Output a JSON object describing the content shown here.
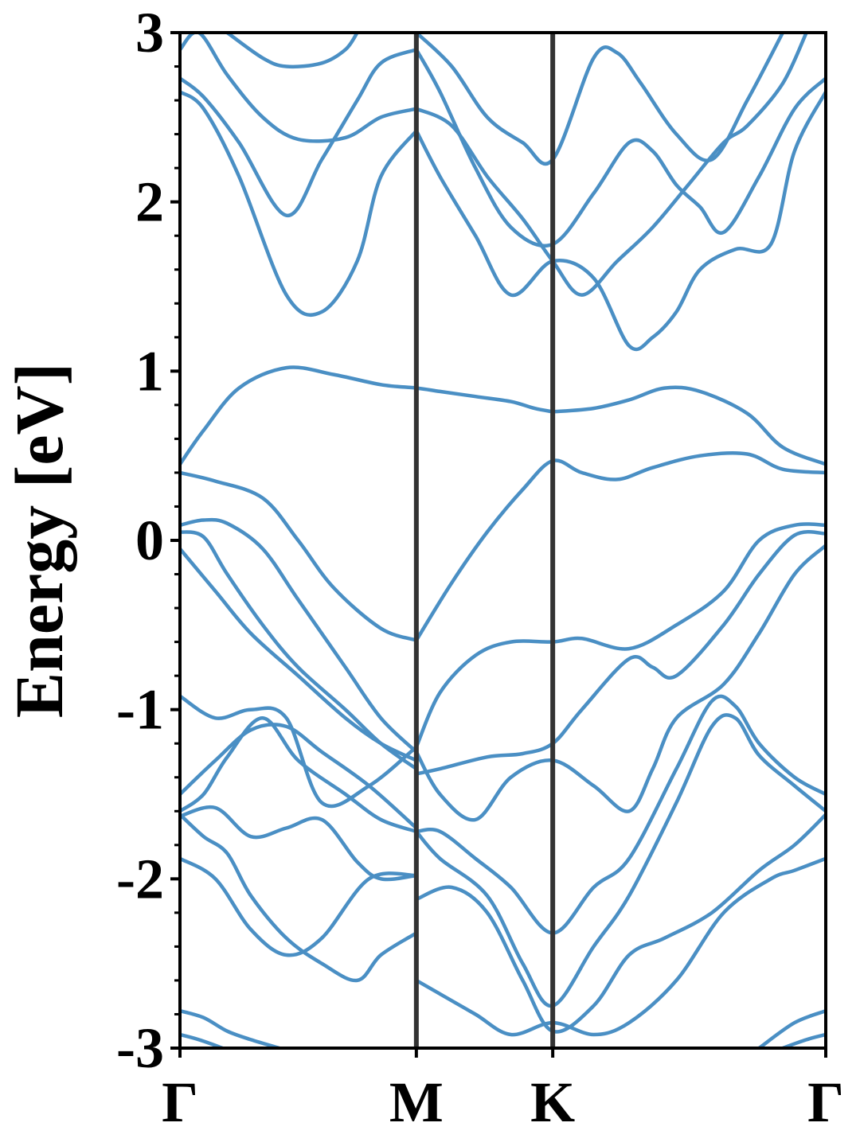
{
  "chart_data": {
    "type": "line",
    "title": "",
    "xlabel": "",
    "ylabel": "Energy [eV]",
    "ylim": [
      -3,
      3
    ],
    "grid": false,
    "legend": "none",
    "colors": {
      "band": "#4a8fc4",
      "kpath_line": "#333333"
    },
    "x_range": [
      0,
      2.732
    ],
    "high_symmetry_points": [
      {
        "label": "Γ",
        "x": 0
      },
      {
        "label": "M",
        "x": 1.0
      },
      {
        "label": "K",
        "x": 1.577
      },
      {
        "label": "Γ",
        "x": 2.732
      }
    ],
    "yticks": [
      {
        "value": 3,
        "label": "3"
      },
      {
        "value": 2,
        "label": "2"
      },
      {
        "value": 1,
        "label": "1"
      },
      {
        "value": 0,
        "label": "0"
      },
      {
        "value": -1,
        "label": "-1"
      },
      {
        "value": -2,
        "label": "-2"
      },
      {
        "value": -3,
        "label": "-3"
      }
    ],
    "minor_tick_step": 0.2,
    "series": [
      {
        "x": [
          0,
          0.1,
          0.25,
          0.45,
          0.65,
          0.85,
          1.0,
          1.1,
          1.25,
          1.4,
          1.5,
          1.577
        ],
        "y": [
          0.45,
          0.65,
          0.9,
          1.02,
          0.98,
          0.92,
          0.9,
          0.88,
          0.85,
          0.82,
          0.78,
          0.76
        ]
      },
      {
        "x": [
          1.577,
          1.75,
          1.9,
          2.05,
          2.2,
          2.4,
          2.55,
          2.732
        ],
        "y": [
          0.76,
          0.78,
          0.83,
          0.9,
          0.88,
          0.75,
          0.55,
          0.45
        ]
      },
      {
        "x": [
          0,
          0.15,
          0.35,
          0.5,
          0.65,
          0.85,
          1.0
        ],
        "y": [
          0.4,
          0.35,
          0.25,
          0.0,
          -0.28,
          -0.52,
          -0.59
        ]
      },
      {
        "x": [
          1.0,
          1.15,
          1.3,
          1.45,
          1.577,
          1.7,
          1.85,
          2.0,
          2.2,
          2.4,
          2.55,
          2.732
        ],
        "y": [
          -0.59,
          -0.25,
          0.05,
          0.3,
          0.47,
          0.4,
          0.36,
          0.43,
          0.5,
          0.51,
          0.42,
          0.4
        ]
      },
      {
        "x": [
          0,
          0.1,
          0.2,
          0.35,
          0.5,
          0.7,
          0.85,
          1.0
        ],
        "y": [
          0.09,
          0.12,
          0.1,
          -0.05,
          -0.35,
          -0.75,
          -1.05,
          -1.25
        ]
      },
      {
        "x": [
          0,
          0.1,
          0.2,
          0.35,
          0.5,
          0.7,
          0.85,
          1.0
        ],
        "y": [
          0.05,
          0.02,
          -0.2,
          -0.5,
          -0.75,
          -1.0,
          -1.2,
          -1.35
        ]
      },
      {
        "x": [
          0,
          0.15,
          0.3,
          0.5,
          0.7,
          0.85,
          1.0
        ],
        "y": [
          -0.05,
          -0.3,
          -0.55,
          -0.8,
          -1.05,
          -1.2,
          -1.3
        ]
      },
      {
        "x": [
          1.0,
          1.1,
          1.25,
          1.4,
          1.577,
          1.7,
          1.9,
          2.1,
          2.3,
          2.45,
          2.6,
          2.732
        ],
        "y": [
          -1.22,
          -0.9,
          -0.68,
          -0.6,
          -0.6,
          -0.58,
          -0.64,
          -0.5,
          -0.3,
          0.0,
          0.09,
          0.09
        ]
      },
      {
        "x": [
          1.0,
          1.1,
          1.3,
          1.45,
          1.577,
          1.7,
          1.9,
          2.0,
          2.1,
          2.3,
          2.45,
          2.6,
          2.732
        ],
        "y": [
          -1.38,
          -1.35,
          -1.28,
          -1.26,
          -1.2,
          -1.0,
          -0.7,
          -0.75,
          -0.8,
          -0.5,
          -0.2,
          0.03,
          0.04
        ]
      },
      {
        "x": [
          1.0,
          1.1,
          1.25,
          1.4,
          1.577,
          1.75,
          1.9,
          2.0,
          2.1,
          2.3,
          2.45,
          2.6,
          2.732
        ],
        "y": [
          -1.25,
          -1.5,
          -1.65,
          -1.4,
          -1.3,
          -1.45,
          -1.6,
          -1.35,
          -1.05,
          -0.85,
          -0.55,
          -0.2,
          -0.03
        ]
      },
      {
        "x": [
          0,
          0.15,
          0.3,
          0.45,
          0.6,
          0.8,
          1.0
        ],
        "y": [
          -0.92,
          -1.05,
          -1.0,
          -1.05,
          -1.55,
          -1.45,
          -1.22
        ]
      },
      {
        "x": [
          0,
          0.15,
          0.3,
          0.45,
          0.6,
          0.8,
          1.0
        ],
        "y": [
          -1.5,
          -1.3,
          -1.12,
          -1.1,
          -1.25,
          -1.45,
          -1.7
        ]
      },
      {
        "x": [
          0,
          0.1,
          0.2,
          0.35,
          0.5,
          0.7,
          0.85,
          1.0
        ],
        "y": [
          -1.6,
          -1.5,
          -1.28,
          -1.05,
          -1.3,
          -1.5,
          -1.65,
          -1.72
        ]
      },
      {
        "x": [
          0,
          0.15,
          0.3,
          0.45,
          0.6,
          0.75,
          0.85,
          1.0
        ],
        "y": [
          -1.63,
          -1.58,
          -1.75,
          -1.7,
          -1.65,
          -1.9,
          -2.0,
          -1.98
        ]
      },
      {
        "x": [
          1.0,
          1.1,
          1.25,
          1.4,
          1.577,
          1.75,
          1.9,
          2.1,
          2.25,
          2.35,
          2.45,
          2.6,
          2.732
        ],
        "y": [
          -1.72,
          -1.72,
          -1.88,
          -2.05,
          -2.32,
          -2.05,
          -1.88,
          -1.35,
          -0.95,
          -0.98,
          -1.2,
          -1.4,
          -1.5
        ]
      },
      {
        "x": [
          1.0,
          1.1,
          1.3,
          1.45,
          1.577,
          1.75,
          1.9,
          2.1,
          2.25,
          2.35,
          2.45,
          2.6,
          2.732
        ],
        "y": [
          -1.72,
          -1.88,
          -2.1,
          -2.5,
          -2.75,
          -2.4,
          -2.1,
          -1.55,
          -1.1,
          -1.05,
          -1.27,
          -1.45,
          -1.6
        ]
      },
      {
        "x": [
          0,
          0.15,
          0.3,
          0.45,
          0.6,
          0.8,
          1.0
        ],
        "y": [
          -1.88,
          -2.0,
          -2.3,
          -2.45,
          -2.35,
          -2.0,
          -1.98
        ]
      },
      {
        "x": [
          0,
          0.1,
          0.2,
          0.3,
          0.45,
          0.6,
          0.75,
          0.85,
          1.0
        ],
        "y": [
          -1.62,
          -1.75,
          -1.85,
          -2.1,
          -2.35,
          -2.5,
          -2.6,
          -2.45,
          -2.32
        ]
      },
      {
        "x": [
          1.0,
          1.15,
          1.3,
          1.45,
          1.577,
          1.75,
          1.9,
          2.05,
          2.25,
          2.45,
          2.6,
          2.732
        ],
        "y": [
          -2.12,
          -2.05,
          -2.2,
          -2.6,
          -2.9,
          -2.75,
          -2.45,
          -2.35,
          -2.2,
          -1.95,
          -1.8,
          -1.62
        ]
      },
      {
        "x": [
          1.0,
          1.1,
          1.25,
          1.4,
          1.577,
          1.75,
          1.9,
          2.1,
          2.3,
          2.5,
          2.6,
          2.732
        ],
        "y": [
          -2.6,
          -2.68,
          -2.8,
          -2.92,
          -2.85,
          -2.92,
          -2.85,
          -2.6,
          -2.2,
          -2.0,
          -1.95,
          -1.88
        ]
      },
      {
        "x": [
          0,
          0.1,
          0.2,
          0.3,
          0.42
        ],
        "y": [
          -2.78,
          -2.82,
          -2.9,
          -2.95,
          -3.0
        ]
      },
      {
        "x": [
          0,
          0.08,
          0.18
        ],
        "y": [
          -2.92,
          -2.95,
          -3.0
        ]
      },
      {
        "x": [
          2.55,
          2.65,
          2.732
        ],
        "y": [
          -3.0,
          -2.95,
          -2.92
        ]
      },
      {
        "x": [
          2.45,
          2.6,
          2.732
        ],
        "y": [
          -3.0,
          -2.85,
          -2.78
        ]
      },
      {
        "x": [
          0,
          0.1,
          0.25,
          0.45,
          0.6,
          0.75,
          0.85,
          1.0
        ],
        "y": [
          2.65,
          2.55,
          2.15,
          1.45,
          1.35,
          1.65,
          2.15,
          2.42
        ]
      },
      {
        "x": [
          1.0,
          1.1,
          1.25,
          1.4,
          1.577,
          1.75,
          1.9,
          2.0,
          2.1,
          2.2,
          2.35,
          2.5,
          2.6,
          2.732
        ],
        "y": [
          2.42,
          2.15,
          1.8,
          1.45,
          1.65,
          1.55,
          1.15,
          1.2,
          1.35,
          1.6,
          1.72,
          1.75,
          2.3,
          2.65
        ]
      },
      {
        "x": [
          0,
          0.1,
          0.25,
          0.45,
          0.6,
          0.75,
          0.85,
          1.0
        ],
        "y": [
          2.73,
          2.62,
          2.35,
          1.92,
          2.25,
          2.6,
          2.82,
          2.9
        ]
      },
      {
        "x": [
          1.0,
          1.1,
          1.25,
          1.4,
          1.577,
          1.75,
          1.9,
          2.0,
          2.1,
          2.2,
          2.3,
          2.45,
          2.6,
          2.732
        ],
        "y": [
          2.9,
          2.65,
          2.2,
          1.85,
          1.75,
          2.05,
          2.35,
          2.3,
          2.1,
          1.97,
          1.82,
          2.15,
          2.55,
          2.73
        ]
      },
      {
        "x": [
          0,
          0.08,
          0.2,
          0.35,
          0.5,
          0.7,
          0.85,
          1.0
        ],
        "y": [
          2.9,
          3.0,
          2.75,
          2.5,
          2.37,
          2.38,
          2.5,
          2.55
        ]
      },
      {
        "x": [
          1.0,
          1.15,
          1.3,
          1.45,
          1.577,
          1.7,
          1.85,
          2.0,
          2.15,
          2.3,
          2.4,
          2.55,
          2.65
        ],
        "y": [
          2.55,
          2.45,
          2.15,
          1.9,
          1.65,
          1.45,
          1.65,
          1.85,
          2.1,
          2.35,
          2.45,
          2.7,
          3.0
        ]
      },
      {
        "x": [
          0.2,
          0.35,
          0.45,
          0.6,
          0.7,
          0.75
        ],
        "y": [
          3.0,
          2.85,
          2.8,
          2.82,
          2.9,
          3.0
        ]
      },
      {
        "x": [
          1.0,
          1.15,
          1.3,
          1.45,
          1.577,
          1.75,
          1.85,
          1.95,
          2.1,
          2.25,
          2.4,
          2.55
        ],
        "y": [
          3.0,
          2.8,
          2.5,
          2.35,
          2.25,
          2.85,
          2.88,
          2.7,
          2.4,
          2.25,
          2.6,
          3.0
        ]
      }
    ]
  }
}
